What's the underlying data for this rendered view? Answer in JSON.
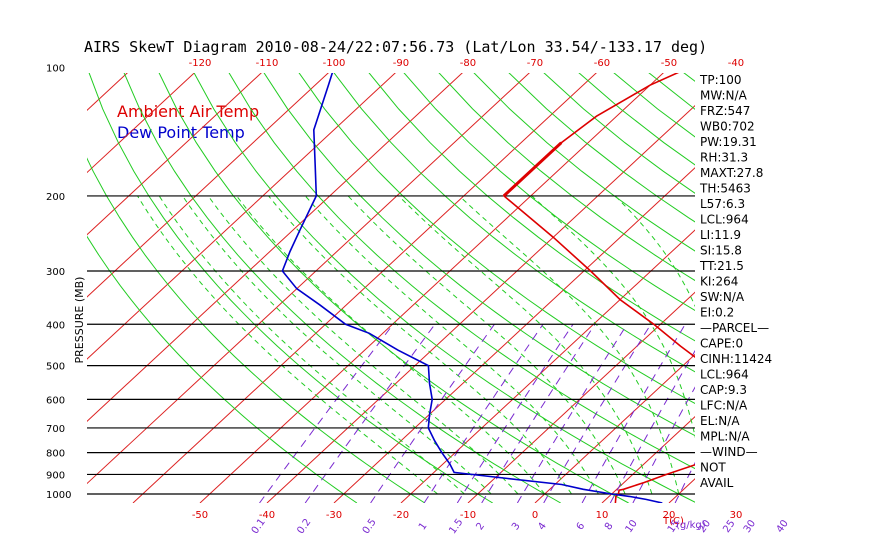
{
  "title": "AIRS SkewT Diagram 2010-08-24/22:07:56.73 (Lat/Lon 33.54/-133.17 deg)",
  "colors": {
    "ambient": "#dd0000",
    "dewpoint": "#0000cc",
    "isotherm": "#dd2222",
    "dry_adiabat": "#22cc22",
    "moist_adiabat": "#22cc22",
    "mixing_ratio": "#7a2ad0",
    "isobar": "#000000"
  },
  "chart_data": {
    "type": "line",
    "ylabel": "PRESSURE (MB)",
    "y_scale": "log",
    "ylim": [
      1000,
      100
    ],
    "pressure_ticks": [
      100,
      200,
      300,
      400,
      500,
      600,
      700,
      800,
      900,
      1000
    ],
    "top_temp_ticks": [
      -120,
      -110,
      -100,
      -90,
      -80,
      -70,
      -60,
      -50,
      -40
    ],
    "bottom_temp_ticks": [
      -50,
      -40,
      -30,
      -20,
      -10,
      0,
      10,
      20,
      30
    ],
    "bottom_axis_label": "T(C)",
    "mixing_ratio_ticks": [
      "0.1",
      "0.2",
      "0.5",
      "1",
      "1.5",
      "2",
      "3",
      "4",
      "6",
      "8",
      "10",
      "15",
      "20",
      "25",
      "30",
      "40"
    ],
    "mixing_ratio_label": "(g/kg)",
    "legend": [
      "Ambient Air Temp",
      "Dew Point Temp"
    ],
    "series": [
      {
        "name": "Ambient Air Temp",
        "points": [
          [
            1050,
            12
          ],
          [
            1013,
            11
          ],
          [
            1000,
            11
          ],
          [
            980,
            10.5
          ],
          [
            975,
            11
          ],
          [
            940,
            13
          ],
          [
            900,
            15
          ],
          [
            850,
            18
          ],
          [
            800,
            20
          ],
          [
            760,
            21
          ],
          [
            720,
            22
          ],
          [
            700,
            21
          ],
          [
            650,
            18
          ],
          [
            600,
            14
          ],
          [
            560,
            9.5
          ],
          [
            500,
            3.5
          ],
          [
            450,
            -3.5
          ],
          [
            400,
            -11
          ],
          [
            350,
            -20
          ],
          [
            300,
            -29
          ],
          [
            250,
            -40
          ],
          [
            220,
            -48
          ],
          [
            200,
            -54
          ],
          [
            185,
            -54
          ],
          [
            160,
            -54
          ],
          [
            150,
            -54
          ],
          [
            130,
            -53
          ],
          [
            110,
            -50
          ],
          [
            100,
            -47
          ]
        ]
      },
      {
        "name": "Dew Point Temp",
        "points": [
          [
            1050,
            19
          ],
          [
            1030,
            16
          ],
          [
            1013,
            13
          ],
          [
            1000,
            10
          ],
          [
            975,
            5
          ],
          [
            950,
            1
          ],
          [
            920,
            -8
          ],
          [
            890,
            -17
          ],
          [
            850,
            -19
          ],
          [
            800,
            -22
          ],
          [
            750,
            -25
          ],
          [
            700,
            -28
          ],
          [
            650,
            -30
          ],
          [
            600,
            -32
          ],
          [
            550,
            -35
          ],
          [
            500,
            -38
          ],
          [
            460,
            -45
          ],
          [
            420,
            -52
          ],
          [
            400,
            -57
          ],
          [
            360,
            -64
          ],
          [
            330,
            -70
          ],
          [
            300,
            -75
          ],
          [
            270,
            -77
          ],
          [
            240,
            -79
          ],
          [
            200,
            -82
          ],
          [
            170,
            -87
          ],
          [
            140,
            -93
          ],
          [
            110,
            -98
          ],
          [
            100,
            -100
          ]
        ]
      }
    ]
  },
  "side_panel": [
    "TP:100",
    "MW:N/A",
    "FRZ:547",
    "WB0:702",
    "PW:19.31",
    "RH:31.3",
    "MAXT:27.8",
    "TH:5463",
    "L57:6.3",
    "LCL:964",
    "LI:11.9",
    "SI:15.8",
    "TT:21.5",
    "KI:264",
    "SW:N/A",
    "EI:0.2",
    "—PARCEL—",
    "CAPE:0",
    "CINH:11424",
    "LCL:964",
    "CAP:9.3",
    "LFC:N/A",
    "EL:N/A",
    "MPL:N/A",
    "—WIND—",
    "NOT",
    "AVAIL"
  ]
}
